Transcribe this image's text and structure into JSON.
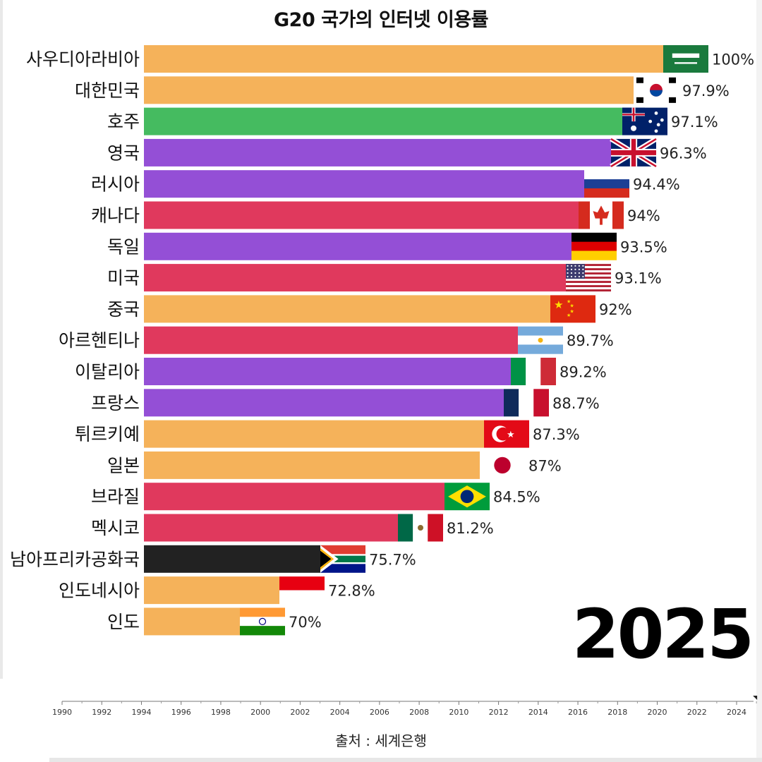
{
  "title": "G20 국가의 인터넷 이용률",
  "source": "출처 : 세계은행",
  "year_label": "2025",
  "colors": {
    "orange": "#f5b25a",
    "green": "#45bb60",
    "purple": "#944fd6",
    "red": "#e0395d",
    "black": "#222222"
  },
  "chart_data": {
    "type": "bar",
    "orientation": "horizontal",
    "title": "G20 국가의 인터넷 이용률",
    "categories": [
      "사우디아라비아",
      "대한민국",
      "호주",
      "영국",
      "러시아",
      "캐나다",
      "독일",
      "미국",
      "중국",
      "아르헨티나",
      "이탈리아",
      "프랑스",
      "튀르키예",
      "일본",
      "브라질",
      "멕시코",
      "남아프리카공화국",
      "인도네시아",
      "인도"
    ],
    "values": [
      100,
      97.9,
      97.1,
      96.3,
      94.4,
      94,
      93.5,
      93.1,
      92,
      89.7,
      89.2,
      88.7,
      87.3,
      87,
      84.5,
      81.2,
      75.7,
      72.8,
      70
    ],
    "value_labels": [
      "100%",
      "97.9%",
      "97.1%",
      "96.3%",
      "94.4%",
      "94%",
      "93.5%",
      "93.1%",
      "92%",
      "89.7%",
      "89.2%",
      "88.7%",
      "87.3%",
      "87%",
      "84.5%",
      "81.2%",
      "75.7%",
      "72.8%",
      "70%"
    ],
    "bar_colors": [
      "orange",
      "orange",
      "green",
      "purple",
      "purple",
      "red",
      "purple",
      "red",
      "orange",
      "red",
      "purple",
      "purple",
      "orange",
      "orange",
      "red",
      "red",
      "black",
      "orange",
      "orange"
    ],
    "flags": [
      "saudi-arabia-flag-icon",
      "south-korea-flag-icon",
      "australia-flag-icon",
      "united-kingdom-flag-icon",
      "russia-flag-icon",
      "canada-flag-icon",
      "germany-flag-icon",
      "usa-flag-icon",
      "china-flag-icon",
      "argentina-flag-icon",
      "italy-flag-icon",
      "france-flag-icon",
      "turkey-flag-icon",
      "japan-flag-icon",
      "brazil-flag-icon",
      "mexico-flag-icon",
      "south-africa-flag-icon",
      "indonesia-flag-icon",
      "india-flag-icon"
    ],
    "xlim": [
      60,
      100
    ],
    "timeline": {
      "range": [
        1990,
        2025
      ],
      "current": 2025,
      "tick_labels": [
        "1990",
        "1992",
        "1994",
        "1996",
        "1998",
        "2000",
        "2002",
        "2004",
        "2006",
        "2008",
        "2010",
        "2012",
        "2014",
        "2016",
        "2018",
        "2020",
        "2022",
        "2024"
      ]
    }
  }
}
